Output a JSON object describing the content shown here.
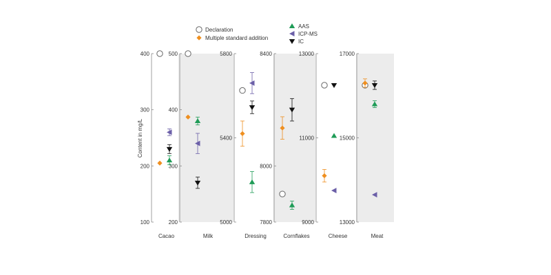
{
  "chart_data": {
    "type": "scatter",
    "ylabel": "Content in mg/L",
    "legend": {
      "placement": "top-center",
      "entries": [
        {
          "key": "declaration",
          "label": "Declaration"
        },
        {
          "key": "msa",
          "label": "Multiple standard addition"
        },
        {
          "key": "aas",
          "label": "AAS"
        },
        {
          "key": "icpms",
          "label": "ICP-MS"
        },
        {
          "key": "ic",
          "label": "IC"
        }
      ]
    },
    "colors": {
      "declaration": "#666666",
      "msa": "#ef8f1f",
      "aas": "#1f9c57",
      "icpms": "#6b5fa8",
      "ic": "#111111",
      "shade": "#ececec"
    },
    "panels": [
      {
        "category": "Cacao",
        "ylim": [
          100,
          400
        ],
        "ticks": [
          100,
          200,
          300,
          400
        ],
        "axis_side": "left",
        "shaded": false,
        "points": [
          {
            "series": "declaration",
            "value": 400,
            "err": 0
          },
          {
            "series": "msa",
            "value": 205,
            "err": 0
          },
          {
            "series": "aas",
            "value": 210,
            "err": 8
          },
          {
            "series": "icpms",
            "value": 260,
            "err": 6
          },
          {
            "series": "ic",
            "value": 230,
            "err": 8
          }
        ]
      },
      {
        "category": "Milk",
        "ylim": [
          200,
          500
        ],
        "ticks": [
          200,
          300,
          400,
          500
        ],
        "axis_side": "left",
        "shaded": true,
        "points": [
          {
            "series": "declaration",
            "value": 500,
            "err": 0
          },
          {
            "series": "msa",
            "value": 387,
            "err": 0
          },
          {
            "series": "aas",
            "value": 380,
            "err": 7
          },
          {
            "series": "icpms",
            "value": 340,
            "err": 18
          },
          {
            "series": "ic",
            "value": 270,
            "err": 10
          }
        ]
      },
      {
        "category": "Dressing",
        "ylim": [
          5000,
          5800
        ],
        "ticks": [
          5000,
          5400,
          5800
        ],
        "axis_side": "left",
        "shaded": false,
        "points": [
          {
            "series": "declaration",
            "value": 5625,
            "err": 0
          },
          {
            "series": "msa",
            "value": 5420,
            "err": 60
          },
          {
            "series": "aas",
            "value": 5190,
            "err": 50
          },
          {
            "series": "icpms",
            "value": 5660,
            "err": 50
          },
          {
            "series": "ic",
            "value": 5545,
            "err": 30
          }
        ]
      },
      {
        "category": "Cornflakes",
        "ylim": [
          7800,
          8400
        ],
        "ticks": [
          7800,
          8000,
          8400
        ],
        "axis_side": "left",
        "shaded": true,
        "points": [
          {
            "series": "declaration",
            "value": 7900,
            "err": 0
          },
          {
            "series": "msa",
            "value": 8135,
            "err": 40
          },
          {
            "series": "aas",
            "value": 7860,
            "err": 15
          },
          {
            "series": "ic",
            "value": 8200,
            "err": 40
          }
        ]
      },
      {
        "category": "Cheese",
        "ylim": [
          9000,
          13000
        ],
        "ticks": [
          9000,
          11000,
          13000
        ],
        "axis_side": "left",
        "shaded": false,
        "points": [
          {
            "series": "declaration",
            "value": 12250,
            "err": 0
          },
          {
            "series": "msa",
            "value": 10100,
            "err": 150
          },
          {
            "series": "aas",
            "value": 11050,
            "err": 0
          },
          {
            "series": "icpms",
            "value": 9750,
            "err": 0
          },
          {
            "series": "ic",
            "value": 12250,
            "err": 0
          }
        ]
      },
      {
        "category": "Meat",
        "ylim": [
          13000,
          17000
        ],
        "ticks": [
          13000,
          15000,
          17000
        ],
        "axis_side": "left",
        "shaded": true,
        "points": [
          {
            "series": "declaration",
            "value": 16250,
            "err": 0
          },
          {
            "series": "msa",
            "value": 16300,
            "err": 100
          },
          {
            "series": "aas",
            "value": 15800,
            "err": 80
          },
          {
            "series": "icpms",
            "value": 13650,
            "err": 0
          },
          {
            "series": "ic",
            "value": 16250,
            "err": 100
          }
        ]
      }
    ]
  }
}
